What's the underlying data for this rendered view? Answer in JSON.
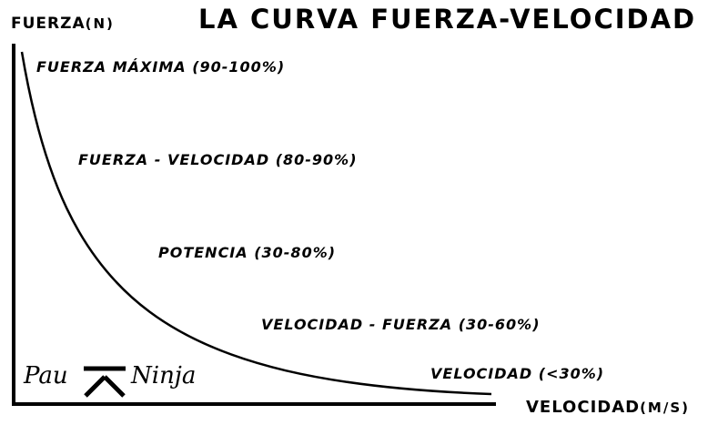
{
  "title": "LA CURVA FUERZA-VELOCIDAD",
  "axes": {
    "y": {
      "label": "FUERZA",
      "unit": "(N)"
    },
    "x": {
      "label": "VELOCIDAD",
      "unit": "(M/S)"
    }
  },
  "zones": [
    "FUERZA MÁXIMA (90-100%)",
    "FUERZA - VELOCIDAD (80-90%)",
    "POTENCIA (30-80%)",
    "VELOCIDAD - FUERZA (30-60%)",
    "VELOCIDAD (<30%)"
  ],
  "logo": {
    "left": "Pau",
    "right": "Ninja"
  },
  "colors": {
    "ink": "#000000",
    "background": "#ffffff"
  }
}
